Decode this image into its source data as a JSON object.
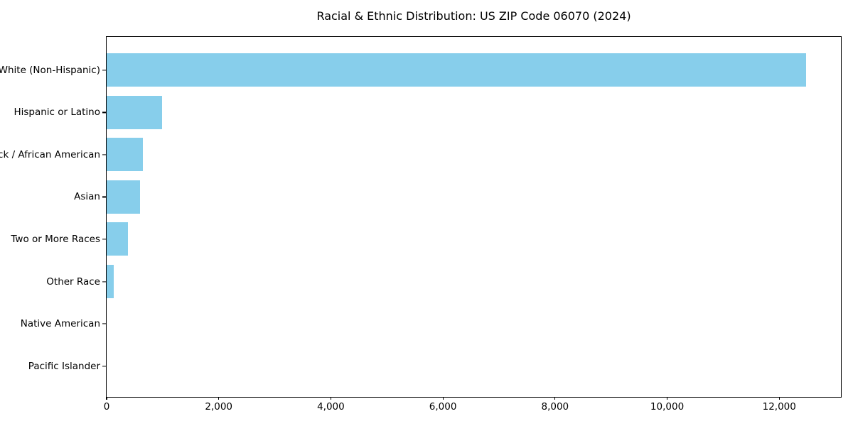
{
  "chart_data": {
    "type": "bar",
    "orientation": "horizontal",
    "title": "Racial & Ethnic Distribution: US ZIP Code 06070 (2024)",
    "categories": [
      "White (Non-Hispanic)",
      "Hispanic or Latino",
      "Black / African American",
      "Asian",
      "Two or More Races",
      "Other Race",
      "Native American",
      "Pacific Islander"
    ],
    "values": [
      12480,
      990,
      650,
      600,
      385,
      125,
      0,
      0
    ],
    "xlabel": "",
    "ylabel": "",
    "xlim": [
      0,
      13100
    ],
    "xticks": [
      0,
      2000,
      4000,
      6000,
      8000,
      10000,
      12000
    ],
    "xtick_labels": [
      "0",
      "2,000",
      "4,000",
      "6,000",
      "8,000",
      "10,000",
      "12,000"
    ],
    "bar_color": "#87CEEB",
    "axis_color": "#000000",
    "text_color": "#000000",
    "background_color": "#ffffff",
    "grid": false,
    "legend": null
  }
}
